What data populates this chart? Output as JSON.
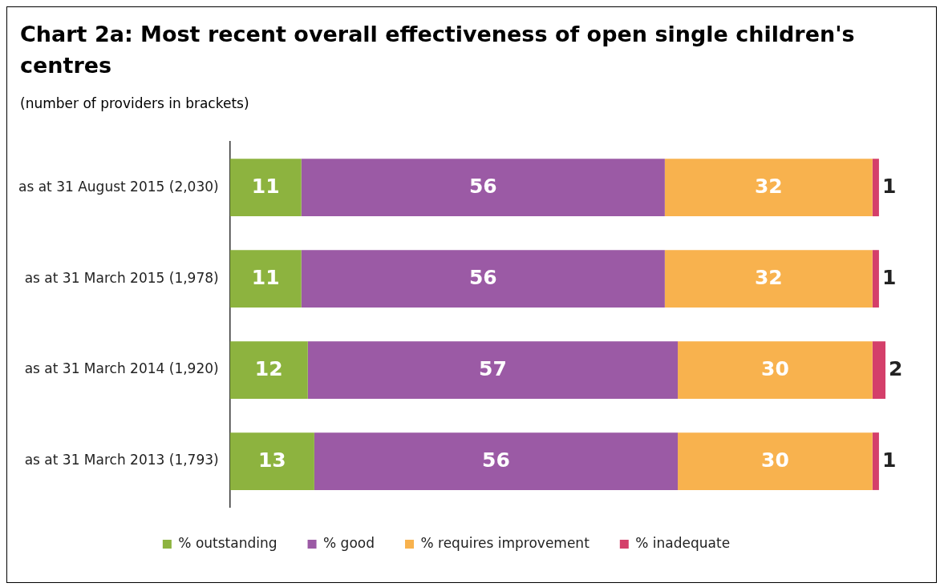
{
  "chart_data": {
    "type": "bar",
    "title": "Chart 2a: Most recent overall effectiveness of open single children's centres",
    "subtitle": "(number of providers in brackets)",
    "orientation": "horizontal",
    "stacked": true,
    "data_labels": true,
    "legend": "bottom",
    "tick_labels": "y",
    "xlim": [
      0,
      101
    ],
    "categories": [
      "as at 31 August 2015 (2,030)",
      "as at 31 March 2015 (1,978)",
      "as at 31 March 2014 (1,920)",
      "as at 31 March 2013 (1,793)"
    ],
    "series": [
      {
        "name": "% outstanding",
        "color": "#8db33f",
        "values": [
          11,
          11,
          12,
          13
        ]
      },
      {
        "name": "% good",
        "color": "#9b5aa5",
        "values": [
          56,
          56,
          57,
          56
        ]
      },
      {
        "name": "% requires improvement",
        "color": "#f8b24e",
        "values": [
          32,
          32,
          30,
          30
        ]
      },
      {
        "name": "% inadequate",
        "color": "#d43f6a",
        "values": [
          1,
          1,
          2,
          1
        ]
      }
    ]
  }
}
